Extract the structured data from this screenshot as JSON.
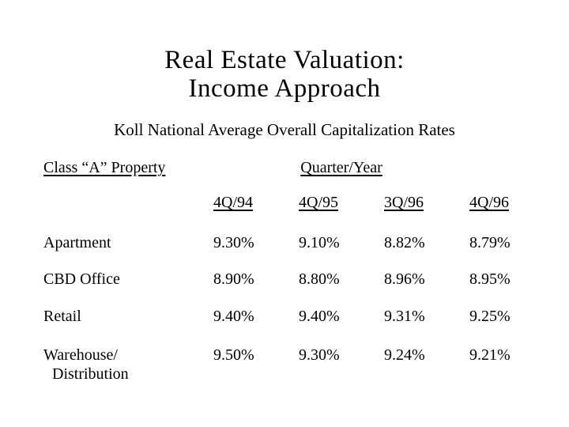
{
  "slide": {
    "title_line1": "Real Estate Valuation:",
    "title_line2": "Income Approach",
    "subtitle": "Koll National Average Overall Capitalization Rates",
    "table": {
      "row_group_header": "Class “A” Property",
      "column_group_header": "Quarter/Year",
      "columns": [
        "4Q/94",
        "4Q/95",
        "3Q/96",
        "4Q/96"
      ],
      "rows": [
        {
          "label": "Apartment",
          "values": [
            "9.30%",
            "9.10%",
            "8.82%",
            "8.79%"
          ]
        },
        {
          "label": "CBD Office",
          "values": [
            "8.90%",
            "8.80%",
            "8.96%",
            "8.95%"
          ]
        },
        {
          "label": "Retail",
          "values": [
            "9.40%",
            "9.40%",
            "9.31%",
            "9.25%"
          ]
        },
        {
          "label": "Warehouse/",
          "label_line2": "Distribution",
          "values": [
            "9.50%",
            "9.30%",
            "9.24%",
            "9.21%"
          ]
        }
      ]
    }
  },
  "colors": {
    "background": "#ffffff",
    "text": "#000000"
  }
}
